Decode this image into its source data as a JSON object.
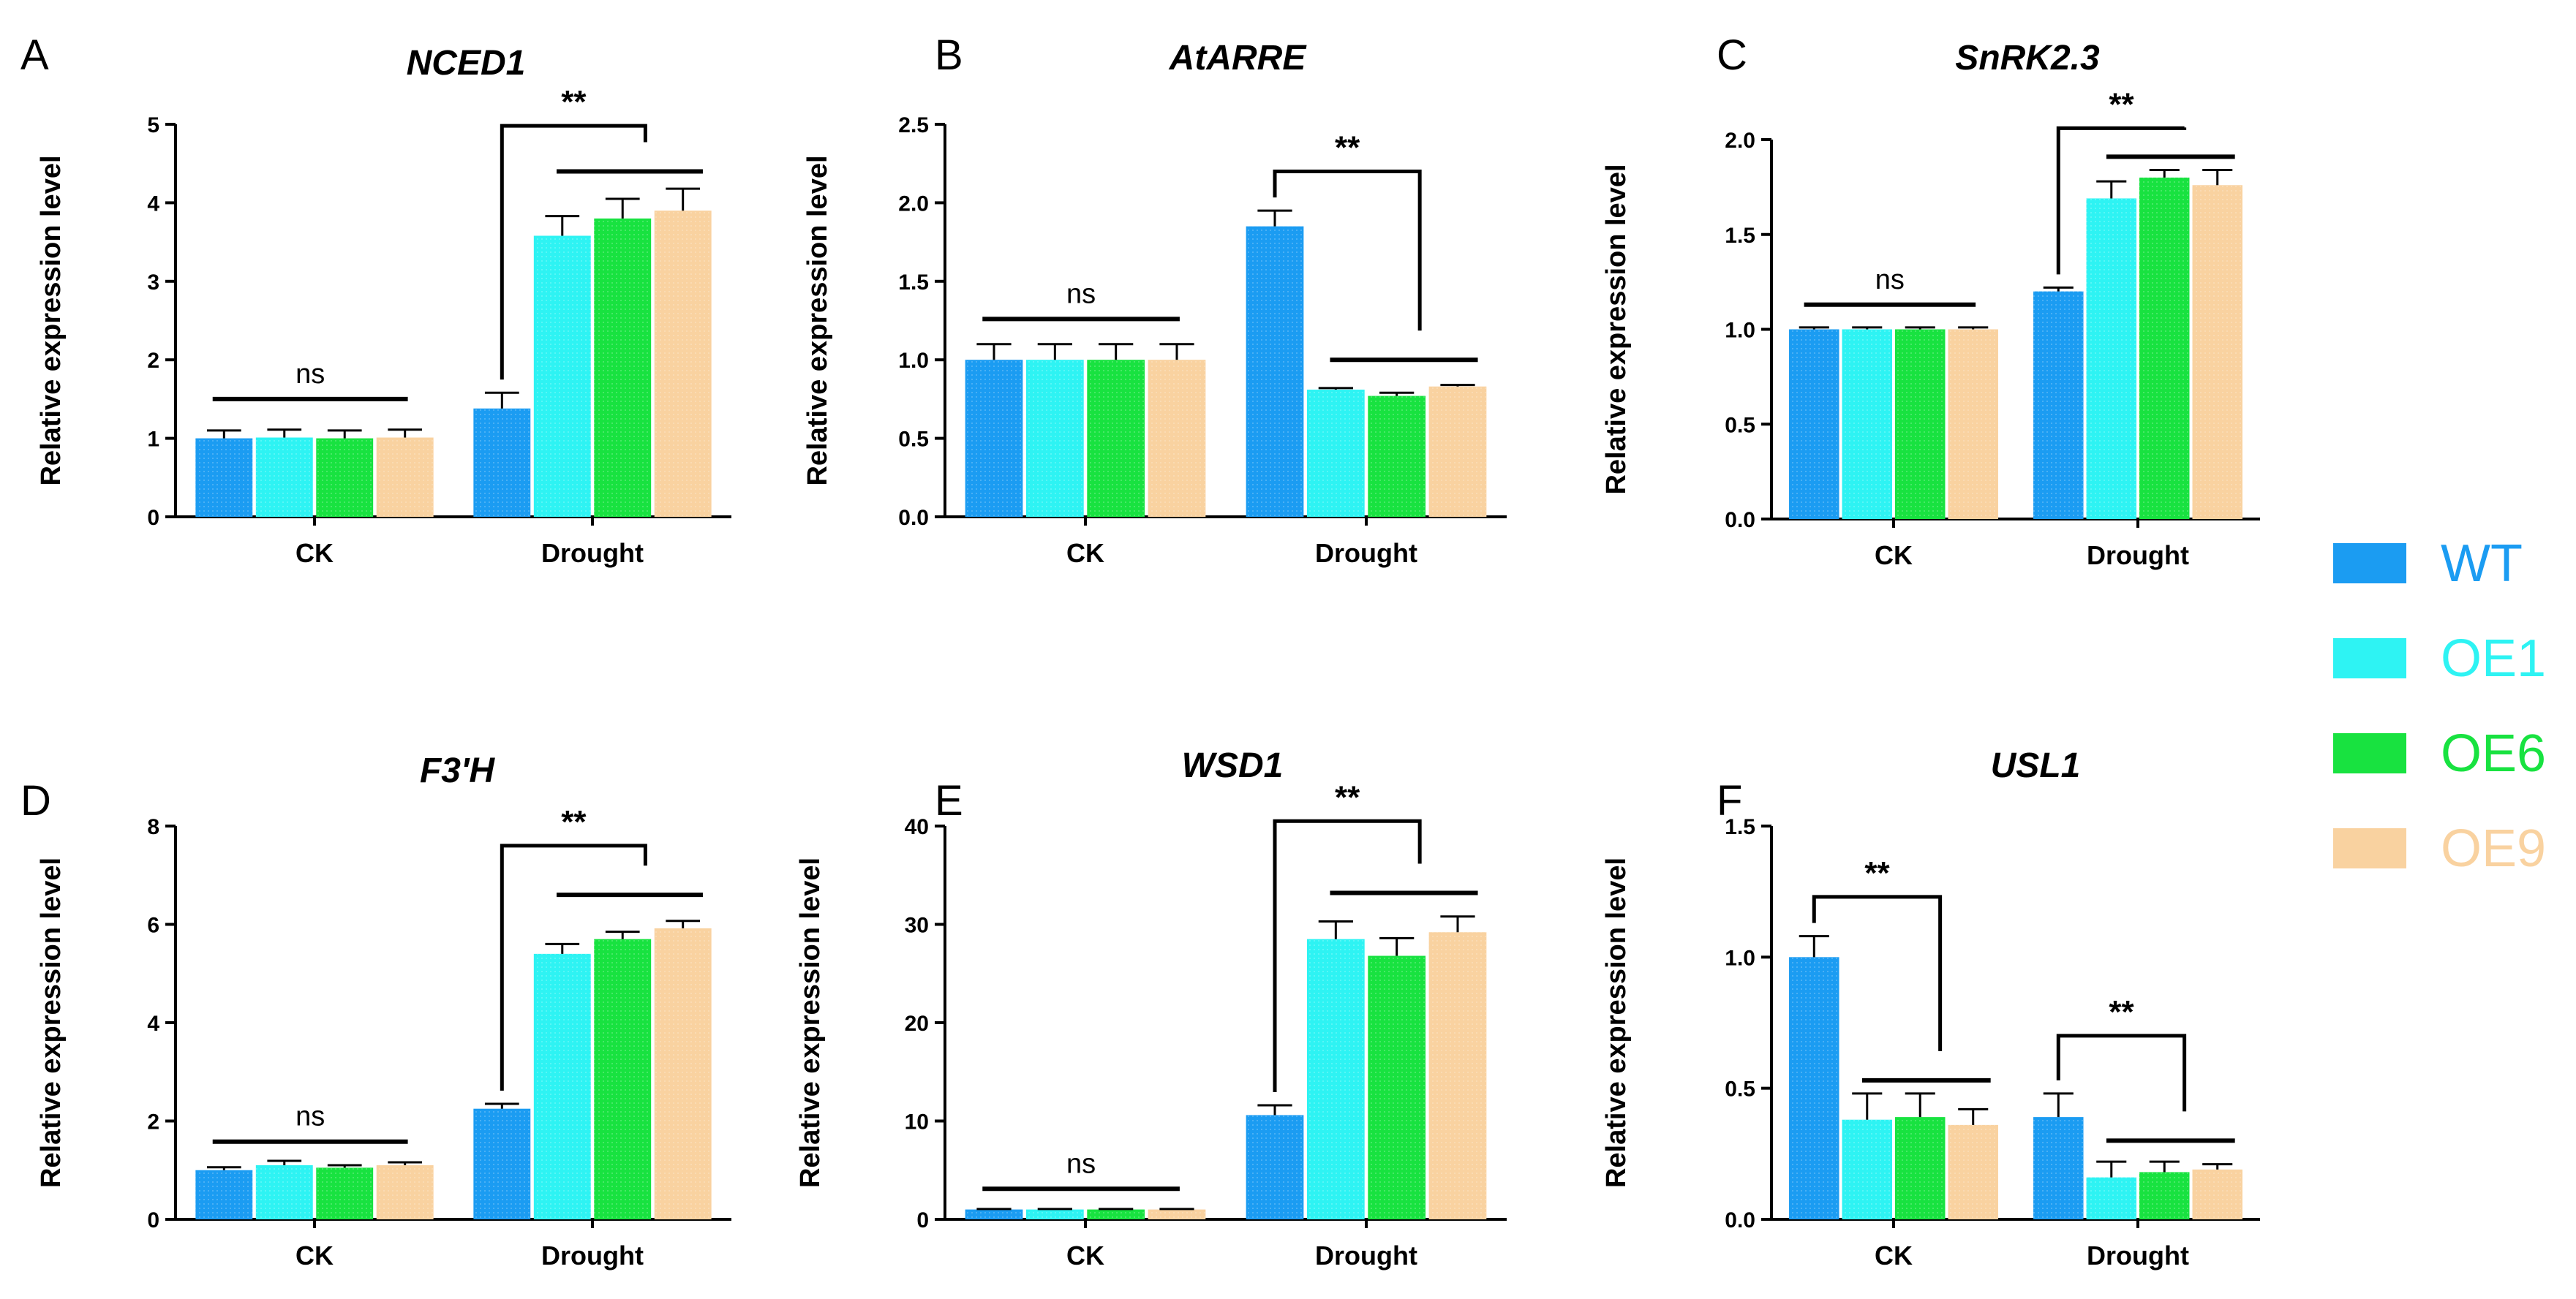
{
  "legend": {
    "entries": [
      {
        "label": "WT",
        "color": "#1B9CF2"
      },
      {
        "label": "OE1",
        "color": "#2EF3F3"
      },
      {
        "label": "OE6",
        "color": "#18E240"
      },
      {
        "label": "OE9",
        "color": "#F9D2A0"
      }
    ]
  },
  "chart_data": [
    {
      "type": "bar",
      "panel": "A",
      "title": "NCED1",
      "ylabel": "Relative expression level",
      "categories": [
        "CK",
        "Drought"
      ],
      "ylim": [
        0,
        5
      ],
      "yticks": [
        "0",
        "1",
        "2",
        "3",
        "4",
        "5"
      ],
      "series": [
        {
          "name": "WT",
          "values": [
            1.0,
            1.38
          ],
          "errors": [
            0.1,
            0.2
          ]
        },
        {
          "name": "OE1",
          "values": [
            1.01,
            3.58
          ],
          "errors": [
            0.1,
            0.25
          ]
        },
        {
          "name": "OE6",
          "values": [
            1.0,
            3.8
          ],
          "errors": [
            0.1,
            0.25
          ]
        },
        {
          "name": "OE9",
          "values": [
            1.01,
            3.9
          ],
          "errors": [
            0.1,
            0.28
          ]
        }
      ],
      "significance": [
        {
          "group": 0,
          "type": "bar",
          "y": 1.5,
          "label": "ns"
        },
        {
          "group": 1,
          "type": "bracket",
          "y": 4.98,
          "label": "**"
        },
        {
          "group": 1,
          "type": "bar",
          "y": 4.4,
          "label": ""
        }
      ]
    },
    {
      "type": "bar",
      "panel": "B",
      "title": "AtARRE",
      "ylabel": "Relative expression level",
      "categories": [
        "CK",
        "Drought"
      ],
      "ylim": [
        0,
        2.5
      ],
      "yticks": [
        "0.0",
        "0.5",
        "1.0",
        "1.5",
        "2.0",
        "2.5"
      ],
      "series": [
        {
          "name": "WT",
          "values": [
            1.0,
            1.85
          ],
          "errors": [
            0.1,
            0.1
          ]
        },
        {
          "name": "OE1",
          "values": [
            1.0,
            0.81
          ],
          "errors": [
            0.1,
            0.01
          ]
        },
        {
          "name": "OE6",
          "values": [
            1.0,
            0.77
          ],
          "errors": [
            0.1,
            0.02
          ]
        },
        {
          "name": "OE9",
          "values": [
            1.0,
            0.83
          ],
          "errors": [
            0.1,
            0.01
          ]
        }
      ],
      "significance": [
        {
          "group": 0,
          "type": "bar",
          "y": 1.26,
          "label": "ns"
        },
        {
          "group": 1,
          "type": "bracket",
          "y": 2.2,
          "label": "**"
        },
        {
          "group": 1,
          "type": "bar",
          "y": 1.0,
          "label": ""
        }
      ]
    },
    {
      "type": "bar",
      "panel": "C",
      "title": "SnRK2.3",
      "ylabel": "Relative expression level",
      "categories": [
        "CK",
        "Drought"
      ],
      "ylim": [
        0,
        2.0
      ],
      "yticks": [
        "0.0",
        "0.5",
        "1.0",
        "1.5",
        "2.0"
      ],
      "series": [
        {
          "name": "WT",
          "values": [
            1.0,
            1.2
          ],
          "errors": [
            0.01,
            0.02
          ]
        },
        {
          "name": "OE1",
          "values": [
            1.0,
            1.69
          ],
          "errors": [
            0.01,
            0.09
          ]
        },
        {
          "name": "OE6",
          "values": [
            1.0,
            1.8
          ],
          "errors": [
            0.01,
            0.04
          ]
        },
        {
          "name": "OE9",
          "values": [
            1.0,
            1.76
          ],
          "errors": [
            0.01,
            0.08
          ]
        }
      ],
      "significance": [
        {
          "group": 0,
          "type": "bar",
          "y": 1.13,
          "label": "ns"
        },
        {
          "group": 1,
          "type": "bracket",
          "y": 2.06,
          "label": "**"
        },
        {
          "group": 1,
          "type": "bar",
          "y": 1.91,
          "label": ""
        }
      ]
    },
    {
      "type": "bar",
      "panel": "D",
      "title": "F3'H",
      "ylabel": "Relative expression level",
      "categories": [
        "CK",
        "Drought"
      ],
      "ylim": [
        0,
        8
      ],
      "yticks": [
        "0",
        "2",
        "4",
        "6",
        "8"
      ],
      "series": [
        {
          "name": "WT",
          "values": [
            1.0,
            2.25
          ],
          "errors": [
            0.06,
            0.1
          ]
        },
        {
          "name": "OE1",
          "values": [
            1.1,
            5.4
          ],
          "errors": [
            0.09,
            0.2
          ]
        },
        {
          "name": "OE6",
          "values": [
            1.05,
            5.7
          ],
          "errors": [
            0.05,
            0.15
          ]
        },
        {
          "name": "OE9",
          "values": [
            1.1,
            5.92
          ],
          "errors": [
            0.06,
            0.15
          ]
        }
      ],
      "significance": [
        {
          "group": 0,
          "type": "bar",
          "y": 1.58,
          "label": "ns"
        },
        {
          "group": 1,
          "type": "bracket",
          "y": 7.6,
          "label": "**"
        },
        {
          "group": 1,
          "type": "bar",
          "y": 6.6,
          "label": ""
        }
      ]
    },
    {
      "type": "bar",
      "panel": "E",
      "title": "WSD1",
      "ylabel": "Relative expression level",
      "categories": [
        "CK",
        "Drought"
      ],
      "ylim": [
        0,
        40
      ],
      "yticks": [
        "0",
        "10",
        "20",
        "30",
        "40"
      ],
      "series": [
        {
          "name": "WT",
          "values": [
            1.0,
            10.6
          ],
          "errors": [
            0.05,
            1.0
          ]
        },
        {
          "name": "OE1",
          "values": [
            1.0,
            28.5
          ],
          "errors": [
            0.05,
            1.8
          ]
        },
        {
          "name": "OE6",
          "values": [
            1.0,
            26.8
          ],
          "errors": [
            0.05,
            1.8
          ]
        },
        {
          "name": "OE9",
          "values": [
            1.0,
            29.2
          ],
          "errors": [
            0.05,
            1.6
          ]
        }
      ],
      "significance": [
        {
          "group": 0,
          "type": "bar",
          "y": 3.1,
          "label": "ns"
        },
        {
          "group": 1,
          "type": "bracket",
          "y": 40.5,
          "label": "**"
        },
        {
          "group": 1,
          "type": "bar",
          "y": 33.2,
          "label": ""
        }
      ]
    },
    {
      "type": "bar",
      "panel": "F",
      "title": "USL1",
      "ylabel": "Relative expression level",
      "categories": [
        "CK",
        "Drought"
      ],
      "ylim": [
        0,
        1.5
      ],
      "yticks": [
        "0.0",
        "0.5",
        "1.0",
        "1.5"
      ],
      "series": [
        {
          "name": "WT",
          "values": [
            1.0,
            0.39
          ],
          "errors": [
            0.08,
            0.09
          ]
        },
        {
          "name": "OE1",
          "values": [
            0.38,
            0.16
          ],
          "errors": [
            0.1,
            0.06
          ]
        },
        {
          "name": "OE6",
          "values": [
            0.39,
            0.18
          ],
          "errors": [
            0.09,
            0.04
          ]
        },
        {
          "name": "OE9",
          "values": [
            0.36,
            0.19
          ],
          "errors": [
            0.06,
            0.02
          ]
        }
      ],
      "significance": [
        {
          "group": 0,
          "type": "bracket",
          "y": 1.23,
          "label": "**"
        },
        {
          "group": 0,
          "type": "bar",
          "y": 0.53,
          "label": ""
        },
        {
          "group": 1,
          "type": "bracket",
          "y": 0.7,
          "label": "**"
        },
        {
          "group": 1,
          "type": "bar",
          "y": 0.3,
          "label": ""
        }
      ]
    }
  ]
}
